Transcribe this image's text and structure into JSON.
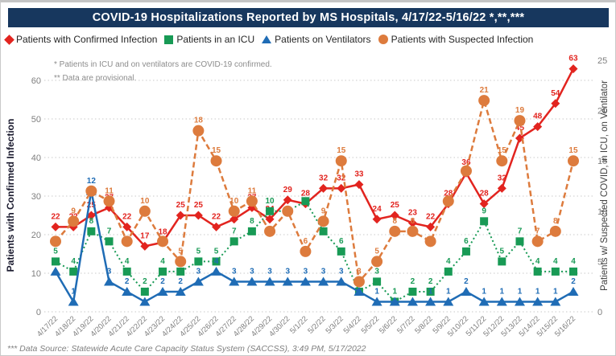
{
  "title": "COVID-19 Hospitalizations Reported by MS Hospitals, 4/17/22-5/16/22 *,**,***",
  "notes": {
    "line1": "* Patients in ICU and on ventilators are COVID-19 confirmed.",
    "line2": "** Data are provisional."
  },
  "footer": "*** Data Source: Statewide Acute Care Capacity Status System (SACCSS), 3:49 PM, 5/17/2022",
  "colors": {
    "title_bar": "#17375e",
    "confirmed": "#e2241f",
    "icu": "#189a55",
    "ventilator": "#1f6cb5",
    "suspected": "#dd7b3d",
    "grid": "#c9c9c9",
    "tick_text": "#7f7f7f"
  },
  "chart_data": {
    "type": "line",
    "title": "COVID-19 Hospitalizations Reported by MS Hospitals, 4/17/22-5/16/22 *,**,***",
    "x": [
      "4/17/22",
      "4/18/22",
      "4/19/22",
      "4/20/22",
      "4/21/22",
      "4/22/22",
      "4/23/22",
      "4/24/22",
      "4/25/22",
      "4/26/22",
      "4/27/22",
      "4/28/22",
      "4/29/22",
      "4/30/22",
      "5/1/22",
      "5/2/22",
      "5/3/22",
      "5/4/22",
      "5/5/22",
      "5/6/22",
      "5/7/22",
      "5/8/22",
      "5/9/22",
      "5/10/22",
      "5/11/22",
      "5/12/22",
      "5/13/22",
      "5/14/22",
      "5/15/22",
      "5/16/22"
    ],
    "series": [
      {
        "name": "Patients with Confirmed Infection",
        "axis": "left",
        "color": "#e2241f",
        "marker": "diamond",
        "line": "solid",
        "values": [
          22,
          22,
          25,
          27,
          22,
          17,
          18,
          25,
          25,
          22,
          24,
          27,
          24,
          29,
          28,
          32,
          32,
          33,
          24,
          25,
          23,
          22,
          28,
          36,
          28,
          32,
          45,
          48,
          54,
          63
        ],
        "label_hidden": [
          10
        ]
      },
      {
        "name": "Patients in an ICU",
        "axis": "right",
        "color": "#189a55",
        "marker": "square",
        "line": "dotted",
        "values": [
          5,
          4,
          8,
          7,
          4,
          2,
          4,
          4,
          5,
          5,
          7,
          8,
          10,
          10,
          11,
          8,
          6,
          2,
          3,
          1,
          2,
          2,
          4,
          6,
          9,
          5,
          7,
          4,
          4,
          4
        ],
        "label_hidden": [
          13,
          14
        ]
      },
      {
        "name": "Patients on Ventilators",
        "axis": "right",
        "color": "#1f6cb5",
        "marker": "triangle",
        "line": "solid",
        "values": [
          4,
          1,
          12,
          3,
          2,
          1,
          2,
          2,
          3,
          4,
          3,
          3,
          3,
          3,
          3,
          3,
          3,
          2,
          1,
          1,
          1,
          1,
          1,
          2,
          1,
          1,
          1,
          1,
          1,
          2
        ],
        "label_hidden": [
          0,
          5,
          17,
          19,
          20
        ]
      },
      {
        "name": "Patients with Suspected Infection",
        "axis": "right",
        "color": "#dd7b3d",
        "marker": "circle",
        "line": "dashed",
        "values": [
          7,
          9,
          12,
          11,
          7,
          10,
          7,
          5,
          18,
          15,
          10,
          11,
          8,
          10,
          6,
          9,
          15,
          3,
          5,
          8,
          8,
          7,
          11,
          14,
          21,
          15,
          19,
          7,
          8,
          15
        ],
        "label_hidden": [
          0,
          2,
          4,
          6,
          12,
          13,
          21,
          22,
          23
        ]
      }
    ],
    "left_axis": {
      "label": "Patients with Confirmed Infection",
      "ticks": [
        0,
        10,
        20,
        30,
        40,
        50,
        60
      ],
      "range": [
        0,
        60
      ]
    },
    "right_axis": {
      "label": "Patients w/ Suspected COVID, in ICU, on Ventilator",
      "ticks": [
        0,
        5,
        10,
        15,
        20,
        25
      ],
      "range": [
        0,
        25
      ]
    },
    "grid": "horizontal-dotted",
    "legend_position": "top"
  }
}
